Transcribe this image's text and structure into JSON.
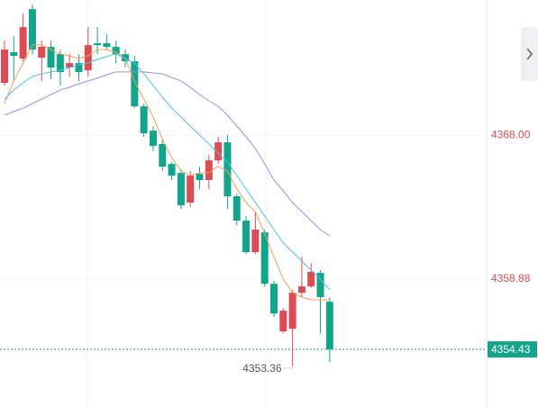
{
  "chart_data": {
    "type": "candlestick",
    "ylim": [
      4350.78,
      4376.57
    ],
    "up_color": "#dd4b55",
    "down_color": "#13a58c",
    "open": [
      4371.32,
      4373.26,
      4372.86,
      4375.99,
      4372.91,
      4373.6,
      4373.14,
      4372.29,
      4372.57,
      4372.12,
      4373.83,
      4373.83,
      4373.6,
      4373.14,
      4372.69,
      4369.83,
      4368.29,
      4367.44,
      4366.18,
      4365.61,
      4363.73,
      4365.55,
      4365.16,
      4366.41,
      4367.55,
      4364.13,
      4362.59,
      4360.59,
      4361.85,
      4358.59,
      4355.57,
      4355.74,
      4358.02,
      4358.42,
      4359.28,
      4357.45
    ],
    "high": [
      4374.0,
      4374.28,
      4375.71,
      4376.28,
      4374.0,
      4374.0,
      4373.43,
      4373.14,
      4373.14,
      4374.85,
      4374.85,
      4374.4,
      4374.0,
      4373.43,
      4373.03,
      4370.0,
      4368.58,
      4367.72,
      4366.3,
      4365.84,
      4365.73,
      4366.01,
      4366.75,
      4367.89,
      4368.01,
      4364.3,
      4362.87,
      4363.16,
      4362.02,
      4358.77,
      4357.05,
      4358.2,
      4360.31,
      4359.91,
      4359.45,
      4357.74
    ],
    "low": [
      4371.15,
      4371.43,
      4372.69,
      4373.14,
      4371.43,
      4371.55,
      4371.15,
      4371.72,
      4371.43,
      4371.72,
      4373.14,
      4373.43,
      4372.57,
      4372.29,
      4369.72,
      4367.89,
      4366.98,
      4365.73,
      4365.16,
      4363.33,
      4363.44,
      4364.59,
      4364.59,
      4366.18,
      4363.33,
      4362.3,
      4360.48,
      4360.48,
      4358.42,
      4356.48,
      4355.46,
      4353.36,
      4357.74,
      4358.31,
      4355.46,
      4353.63
    ],
    "close": [
      4373.43,
      4373.03,
      4374.85,
      4373.43,
      4373.6,
      4372.29,
      4372.0,
      4372.57,
      4372.0,
      4373.71,
      4373.71,
      4373.6,
      4373.14,
      4372.69,
      4369.83,
      4368.12,
      4367.32,
      4366.01,
      4365.44,
      4363.56,
      4365.44,
      4365.16,
      4366.41,
      4367.55,
      4364.13,
      4362.59,
      4360.59,
      4362.02,
      4358.59,
      4356.71,
      4356.88,
      4358.02,
      4358.42,
      4359.34,
      4357.74,
      4354.43
    ],
    "series": [
      {
        "color": "#f0a055",
        "values": [
          4370.01,
          4371.44,
          4372.58,
          4373.72,
          4373.72,
          4373.43,
          4373.15,
          4373.03,
          4372.86,
          4373.03,
          4373.43,
          4373.43,
          4373.26,
          4372.86,
          4371.44,
          4370.29,
          4369.15,
          4367.73,
          4366.59,
          4365.73,
          4365.45,
          4365.62,
          4365.62,
          4366.02,
          4365.73,
          4364.59,
          4363.73,
          4363.16,
          4361.74,
          4360.31,
          4358.88,
          4358.03,
          4357.74,
          4357.57,
          4357.57,
          4357.57
        ]
      },
      {
        "color": "#4cc3dc",
        "values": [
          4370.29,
          4370.87,
          4371.32,
          4371.72,
          4371.89,
          4372.01,
          4372.12,
          4372.29,
          4372.46,
          4372.58,
          4372.81,
          4372.98,
          4373.15,
          4372.86,
          4372.58,
          4371.89,
          4371.15,
          4370.41,
          4369.72,
          4369.15,
          4368.58,
          4368.01,
          4367.44,
          4366.87,
          4366.3,
          4365.45,
          4364.59,
          4363.73,
          4362.88,
          4362.02,
          4361.17,
          4360.6,
          4360.03,
          4359.46,
          4358.88,
          4358.2
        ]
      },
      {
        "color": "#9b8fe3",
        "values": [
          4369.27,
          4369.5,
          4369.72,
          4370.01,
          4370.29,
          4370.58,
          4370.87,
          4371.04,
          4371.26,
          4371.44,
          4371.61,
          4371.84,
          4372.01,
          4372.01,
          4372.01,
          4372.01,
          4371.95,
          4371.89,
          4371.66,
          4371.44,
          4371.04,
          4370.58,
          4370.18,
          4369.84,
          4369.27,
          4368.58,
          4367.9,
          4367.16,
          4366.19,
          4365.16,
          4364.48,
          4363.73,
          4363.16,
          4362.59,
          4362.02,
          4361.62
        ]
      }
    ],
    "price_labels": [
      {
        "value": 4368,
        "label": "4368.00"
      },
      4358.88
    ],
    "last_price": 4354.43,
    "low_label": 4353.36
  }
}
